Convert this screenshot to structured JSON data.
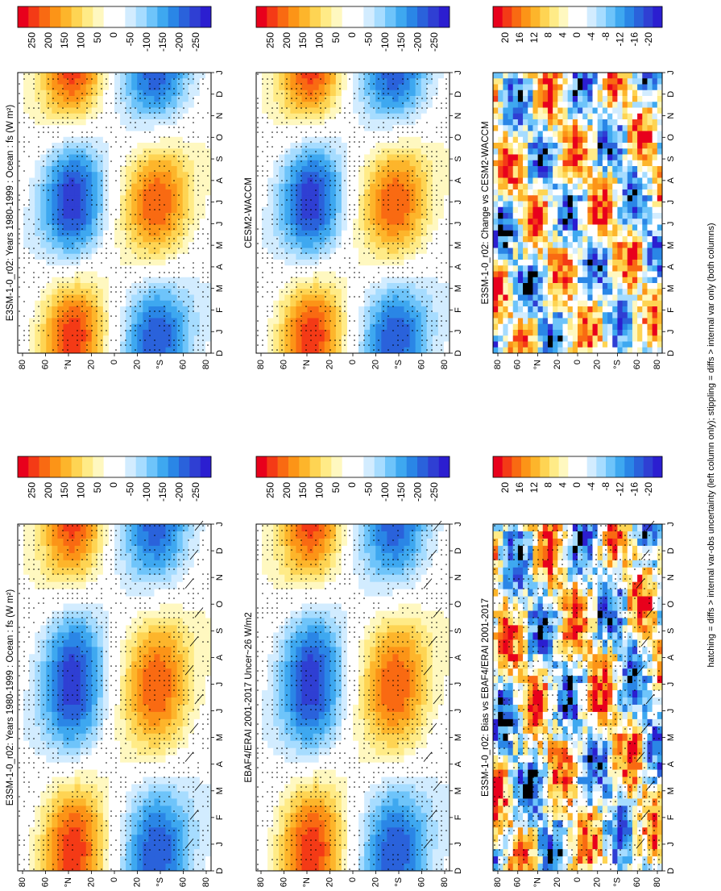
{
  "figure": {
    "footer": "hatching = diffs > internal var-obs uncertainty (left column only); stippling = diffs > internal var only (both columns)",
    "month_labels": [
      "D",
      "J",
      "F",
      "M",
      "A",
      "M",
      "J",
      "J",
      "A",
      "S",
      "O",
      "N",
      "D",
      "J"
    ],
    "lat_labels": [
      "80",
      "60",
      "°N",
      "20",
      "0",
      "20",
      "°S",
      "60",
      "80"
    ]
  },
  "colorbars": {
    "main": {
      "labels": [
        "250",
        "200",
        "150",
        "100",
        "50",
        "0",
        "-50",
        "-100",
        "-150",
        "-200",
        "-250"
      ],
      "colors": [
        "#e8001c",
        "#f43a16",
        "#f96a12",
        "#fc9417",
        "#fdb52b",
        "#fed453",
        "#ffeb87",
        "#fff8c0",
        "#ffffff",
        "#ffffff",
        "#d2ecff",
        "#a6dcff",
        "#6ec4fa",
        "#3ea8f0",
        "#2a86e6",
        "#2a62db",
        "#2f3fd3",
        "#2b1ed0"
      ]
    },
    "diff": {
      "labels": [
        "20",
        "16",
        "12",
        "8",
        "4",
        "0",
        "-4",
        "-8",
        "-12",
        "-16",
        "-20"
      ],
      "colors": [
        "#e8001c",
        "#f43a16",
        "#f96a12",
        "#fc9417",
        "#fdb52b",
        "#fed453",
        "#ffeb87",
        "#fff8c0",
        "#ffffff",
        "#ffffff",
        "#d2ecff",
        "#a6dcff",
        "#6ec4fa",
        "#3ea8f0",
        "#2a86e6",
        "#2a62db",
        "#2f3fd3",
        "#2b1ed0"
      ]
    }
  },
  "chart_data": [
    {
      "type": "heatmap",
      "panel": "row1-left",
      "title": "E3SM-1-0_r02: Years 1980-1999 : Ocean : fs (W m²)",
      "x": "month",
      "y": "latitude",
      "units": "W m-2",
      "range": [
        -250,
        250
      ],
      "pattern": "seasonal",
      "hatching": true,
      "stippling": true
    },
    {
      "type": "heatmap",
      "panel": "row1-right",
      "title": "E3SM-1-0_r02: Years 1980-1999 : Ocean : fs (W m²)",
      "x": "month",
      "y": "latitude",
      "units": "W m-2",
      "range": [
        -250,
        250
      ],
      "pattern": "seasonal",
      "hatching": false,
      "stippling": true
    },
    {
      "type": "heatmap",
      "panel": "row2-left",
      "title": "EBAF4/ERAI 2001-2017 Uncer~26 W/m2",
      "x": "month",
      "y": "latitude",
      "units": "W m-2",
      "range": [
        -250,
        250
      ],
      "pattern": "seasonal",
      "hatching": true,
      "stippling": true
    },
    {
      "type": "heatmap",
      "panel": "row2-right",
      "title": "CESM2-WACCM",
      "x": "month",
      "y": "latitude",
      "units": "W m-2",
      "range": [
        -250,
        250
      ],
      "pattern": "seasonal",
      "hatching": false,
      "stippling": true
    },
    {
      "type": "heatmap",
      "panel": "row3-left",
      "title": "E3SM-1-0_r02: Bias vs EBAF4/ERAI 2001-2017",
      "x": "month",
      "y": "latitude",
      "units": "W m-2",
      "range": [
        -20,
        20
      ],
      "pattern": "noisy",
      "hatching": true,
      "stippling": true
    },
    {
      "type": "heatmap",
      "panel": "row3-right",
      "title": "E3SM-1-0_r02: Change vs CESM2-WACCM",
      "x": "month",
      "y": "latitude",
      "units": "W m-2",
      "range": [
        -20,
        20
      ],
      "pattern": "noisy",
      "hatching": false,
      "stippling": false
    }
  ]
}
